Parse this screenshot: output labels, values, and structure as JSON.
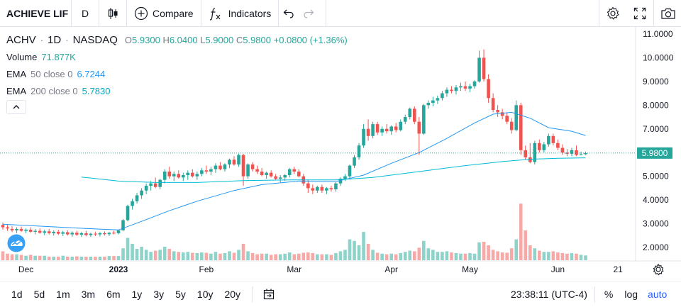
{
  "toolbar": {
    "symbol": "ACHIEVE LIF",
    "interval": "D",
    "compare_label": "Compare",
    "indicators_label": "Indicators"
  },
  "legend": {
    "symbol": "ACHV",
    "interval": "1D",
    "exchange": "NASDAQ",
    "open_key": "O",
    "open": "5.9300",
    "high_key": "H",
    "high": "6.0400",
    "low_key": "L",
    "low": "5.9000",
    "close_key": "C",
    "close": "5.9800",
    "change": "+0.0800 (+1.36%)",
    "volume_label": "Volume",
    "volume_value": "71.877K",
    "ema50_label": "EMA",
    "ema50_params": "50 close 0",
    "ema50_value": "6.7244",
    "ema200_label": "EMA",
    "ema200_params": "200 close 0",
    "ema200_value": "5.7830"
  },
  "price_axis": {
    "ticks": [
      "11.0000",
      "10.0000",
      "9.0000",
      "8.0000",
      "7.0000",
      "6.0000",
      "5.0000",
      "4.0000",
      "3.0000",
      "2.0000"
    ],
    "last_price_label": "5.9800"
  },
  "time_axis": {
    "ticks": [
      {
        "label": "Dec",
        "bold": false
      },
      {
        "label": "2023",
        "bold": true
      },
      {
        "label": "Feb",
        "bold": false
      },
      {
        "label": "Mar",
        "bold": false
      },
      {
        "label": "Apr",
        "bold": false
      },
      {
        "label": "May",
        "bold": false
      },
      {
        "label": "Jun",
        "bold": false
      },
      {
        "label": "21",
        "bold": false
      }
    ]
  },
  "bottom": {
    "ranges": [
      "1d",
      "5d",
      "1m",
      "3m",
      "6m",
      "1y",
      "3y",
      "5y",
      "10y",
      "20y"
    ],
    "clock": "23:38:11 (UTC-4)",
    "percent": "%",
    "log": "log",
    "auto": "auto"
  },
  "colors": {
    "up": "#26a69a",
    "down": "#ef5350",
    "ema50": "#2196f3",
    "ema200": "#00bcd4",
    "vol_up": "#8ed3c9",
    "vol_down": "#f7a9a7"
  },
  "chart_data": {
    "type": "candlestick",
    "axis_scale": "linear",
    "ylim": [
      1.6,
      11.2
    ],
    "last_price": 5.98,
    "candles_ohlc": [
      [
        2.95,
        3.05,
        2.75,
        2.85
      ],
      [
        2.85,
        2.95,
        2.7,
        2.8
      ],
      [
        2.78,
        2.9,
        2.65,
        2.72
      ],
      [
        2.72,
        2.85,
        2.6,
        2.78
      ],
      [
        2.78,
        2.88,
        2.65,
        2.7
      ],
      [
        2.7,
        2.8,
        2.6,
        2.75
      ],
      [
        2.75,
        2.85,
        2.62,
        2.66
      ],
      [
        2.66,
        2.78,
        2.55,
        2.7
      ],
      [
        2.7,
        2.8,
        2.58,
        2.62
      ],
      [
        2.62,
        2.75,
        2.52,
        2.68
      ],
      [
        2.68,
        2.78,
        2.55,
        2.6
      ],
      [
        2.6,
        2.72,
        2.5,
        2.66
      ],
      [
        2.66,
        2.75,
        2.52,
        2.58
      ],
      [
        2.58,
        2.7,
        2.48,
        2.64
      ],
      [
        2.64,
        2.72,
        2.5,
        2.55
      ],
      [
        2.55,
        2.68,
        2.45,
        2.62
      ],
      [
        2.62,
        2.7,
        2.48,
        2.54
      ],
      [
        2.54,
        2.66,
        2.45,
        2.6
      ],
      [
        2.6,
        2.7,
        2.47,
        2.52
      ],
      [
        2.52,
        2.62,
        2.45,
        2.58
      ],
      [
        2.58,
        2.66,
        2.48,
        2.55
      ],
      [
        2.55,
        2.65,
        2.46,
        2.6
      ],
      [
        2.6,
        2.68,
        2.5,
        2.56
      ],
      [
        2.56,
        2.65,
        2.48,
        2.62
      ],
      [
        2.62,
        2.7,
        2.55,
        2.6
      ],
      [
        2.6,
        2.75,
        2.55,
        2.72
      ],
      [
        2.72,
        3.2,
        2.7,
        3.15
      ],
      [
        3.15,
        3.8,
        3.1,
        3.75
      ],
      [
        3.75,
        4.05,
        3.6,
        3.95
      ],
      [
        3.95,
        4.3,
        3.85,
        4.2
      ],
      [
        4.2,
        4.5,
        4.05,
        4.4
      ],
      [
        4.4,
        4.7,
        4.25,
        4.6
      ],
      [
        4.6,
        4.8,
        4.4,
        4.7
      ],
      [
        4.7,
        4.95,
        4.5,
        4.55
      ],
      [
        4.55,
        4.9,
        4.45,
        4.85
      ],
      [
        4.85,
        5.3,
        4.7,
        5.2
      ],
      [
        5.2,
        5.4,
        4.9,
        5.0
      ],
      [
        5.0,
        5.2,
        4.8,
        5.1
      ],
      [
        5.1,
        5.25,
        4.9,
        4.95
      ],
      [
        4.95,
        5.15,
        4.8,
        5.05
      ],
      [
        5.05,
        5.25,
        4.85,
        5.15
      ],
      [
        5.15,
        5.3,
        4.95,
        5.0
      ],
      [
        5.0,
        5.2,
        4.85,
        5.1
      ],
      [
        5.1,
        5.35,
        5.0,
        5.25
      ],
      [
        5.25,
        5.45,
        5.1,
        5.2
      ],
      [
        5.2,
        5.4,
        5.05,
        5.3
      ],
      [
        5.3,
        5.55,
        5.15,
        5.45
      ],
      [
        5.45,
        5.6,
        5.25,
        5.3
      ],
      [
        5.3,
        5.55,
        5.2,
        5.5
      ],
      [
        5.5,
        5.75,
        5.35,
        5.7
      ],
      [
        5.7,
        5.85,
        5.45,
        5.5
      ],
      [
        5.5,
        5.95,
        5.4,
        5.9
      ],
      [
        5.9,
        5.95,
        4.6,
        5.0
      ],
      [
        5.0,
        5.55,
        4.9,
        5.5
      ],
      [
        5.5,
        5.6,
        5.2,
        5.3
      ],
      [
        5.3,
        5.45,
        5.1,
        5.2
      ],
      [
        5.2,
        5.35,
        5.0,
        5.05
      ],
      [
        5.05,
        5.2,
        4.9,
        5.15
      ],
      [
        5.15,
        5.25,
        4.95,
        5.0
      ],
      [
        5.0,
        5.1,
        4.85,
        4.9
      ],
      [
        4.9,
        5.05,
        4.75,
        4.95
      ],
      [
        4.95,
        5.1,
        4.8,
        5.05
      ],
      [
        5.05,
        5.35,
        4.95,
        5.3
      ],
      [
        5.3,
        5.4,
        5.1,
        5.2
      ],
      [
        5.2,
        5.3,
        4.95,
        5.0
      ],
      [
        5.0,
        5.1,
        4.6,
        4.7
      ],
      [
        4.7,
        4.85,
        4.3,
        4.5
      ],
      [
        4.5,
        4.65,
        4.25,
        4.4
      ],
      [
        4.4,
        4.6,
        4.3,
        4.55
      ],
      [
        4.55,
        4.65,
        4.3,
        4.4
      ],
      [
        4.4,
        4.55,
        4.25,
        4.5
      ],
      [
        4.5,
        4.6,
        4.35,
        4.45
      ],
      [
        4.45,
        4.75,
        4.35,
        4.7
      ],
      [
        4.7,
        4.95,
        4.6,
        4.9
      ],
      [
        4.9,
        5.1,
        4.8,
        5.0
      ],
      [
        5.0,
        5.5,
        4.9,
        5.45
      ],
      [
        5.45,
        5.9,
        5.35,
        5.8
      ],
      [
        5.8,
        6.4,
        5.7,
        6.3
      ],
      [
        6.3,
        7.2,
        6.2,
        7.0
      ],
      [
        7.0,
        7.4,
        6.5,
        6.7
      ],
      [
        6.7,
        7.3,
        6.6,
        7.2
      ],
      [
        7.2,
        7.3,
        6.75,
        6.85
      ],
      [
        6.85,
        7.1,
        6.7,
        7.0
      ],
      [
        7.0,
        7.2,
        6.8,
        6.9
      ],
      [
        6.9,
        7.15,
        6.75,
        7.1
      ],
      [
        7.1,
        7.25,
        6.85,
        6.95
      ],
      [
        6.95,
        7.4,
        6.9,
        7.3
      ],
      [
        7.3,
        7.6,
        7.2,
        7.5
      ],
      [
        7.5,
        7.9,
        7.4,
        7.85
      ],
      [
        7.85,
        7.95,
        7.2,
        7.3
      ],
      [
        7.3,
        7.5,
        5.9,
        6.8
      ],
      [
        6.8,
        8.05,
        6.75,
        8.0
      ],
      [
        8.0,
        8.2,
        7.85,
        8.1
      ],
      [
        8.1,
        8.35,
        7.95,
        8.2
      ],
      [
        8.2,
        8.4,
        8.05,
        8.3
      ],
      [
        8.3,
        8.6,
        8.2,
        8.5
      ],
      [
        8.5,
        8.75,
        8.35,
        8.65
      ],
      [
        8.65,
        8.8,
        8.5,
        8.6
      ],
      [
        8.6,
        8.85,
        8.45,
        8.75
      ],
      [
        8.75,
        8.95,
        8.6,
        8.8
      ],
      [
        8.8,
        9.0,
        8.6,
        8.7
      ],
      [
        8.7,
        8.9,
        8.55,
        8.8
      ],
      [
        8.8,
        9.05,
        8.7,
        9.0
      ],
      [
        9.0,
        10.3,
        8.95,
        10.0
      ],
      [
        10.0,
        10.35,
        9.0,
        9.1
      ],
      [
        9.1,
        9.3,
        8.1,
        8.3
      ],
      [
        8.3,
        8.5,
        7.7,
        7.8
      ],
      [
        7.8,
        8.0,
        7.5,
        7.7
      ],
      [
        7.7,
        7.85,
        7.4,
        7.55
      ],
      [
        7.55,
        7.7,
        7.2,
        7.3
      ],
      [
        7.3,
        7.45,
        6.8,
        6.95
      ],
      [
        6.95,
        8.2,
        6.9,
        8.0
      ],
      [
        8.0,
        8.1,
        5.9,
        6.1
      ],
      [
        6.1,
        6.3,
        5.7,
        5.8
      ],
      [
        5.8,
        6.4,
        5.55,
        5.6
      ],
      [
        5.6,
        6.5,
        5.5,
        6.4
      ],
      [
        6.4,
        6.55,
        6.0,
        6.1
      ],
      [
        6.1,
        6.45,
        6.0,
        6.35
      ],
      [
        6.35,
        6.8,
        6.25,
        6.7
      ],
      [
        6.7,
        6.8,
        6.3,
        6.4
      ],
      [
        6.4,
        6.55,
        6.1,
        6.2
      ],
      [
        6.2,
        6.35,
        5.9,
        6.0
      ],
      [
        6.0,
        6.15,
        5.85,
        5.95
      ],
      [
        5.95,
        6.2,
        5.85,
        6.1
      ],
      [
        6.1,
        6.3,
        5.85,
        5.9
      ],
      [
        5.9,
        6.04,
        5.88,
        5.93
      ],
      [
        5.93,
        6.04,
        5.9,
        5.98
      ]
    ],
    "series": [
      {
        "name": "EMA 50 close 0",
        "color": "#2196f3",
        "points": [
          [
            0,
            2.98
          ],
          [
            10,
            2.88
          ],
          [
            20,
            2.78
          ],
          [
            25,
            2.74
          ],
          [
            30,
            3.1
          ],
          [
            36,
            3.55
          ],
          [
            42,
            3.95
          ],
          [
            50,
            4.4
          ],
          [
            56,
            4.65
          ],
          [
            64,
            4.8
          ],
          [
            72,
            4.78
          ],
          [
            78,
            5.05
          ],
          [
            84,
            5.55
          ],
          [
            90,
            6.0
          ],
          [
            96,
            6.6
          ],
          [
            102,
            7.25
          ],
          [
            106,
            7.62
          ],
          [
            110,
            7.7
          ],
          [
            114,
            7.45
          ],
          [
            118,
            7.05
          ],
          [
            123,
            6.9
          ],
          [
            126,
            6.72
          ]
        ]
      },
      {
        "name": "EMA 200 close 0",
        "color": "#00bcd4",
        "points": [
          [
            17,
            4.97
          ],
          [
            25,
            4.8
          ],
          [
            33,
            4.74
          ],
          [
            42,
            4.74
          ],
          [
            52,
            4.82
          ],
          [
            62,
            4.85
          ],
          [
            72,
            4.85
          ],
          [
            80,
            4.95
          ],
          [
            90,
            5.2
          ],
          [
            100,
            5.45
          ],
          [
            108,
            5.62
          ],
          [
            114,
            5.72
          ],
          [
            120,
            5.76
          ],
          [
            126,
            5.78
          ]
        ]
      }
    ],
    "volume": [
      0.3,
      0.22,
      0.2,
      0.2,
      0.18,
      0.15,
      0.18,
      0.15,
      0.15,
      0.15,
      0.12,
      0.12,
      0.12,
      0.15,
      0.12,
      0.12,
      0.13,
      0.12,
      0.12,
      0.12,
      0.12,
      0.12,
      0.12,
      0.14,
      0.14,
      0.14,
      0.4,
      0.75,
      0.55,
      0.38,
      0.45,
      0.35,
      0.28,
      0.32,
      0.35,
      0.45,
      0.38,
      0.3,
      0.28,
      0.26,
      0.28,
      0.25,
      0.24,
      0.26,
      0.25,
      0.22,
      0.28,
      0.22,
      0.24,
      0.3,
      0.25,
      0.35,
      0.55,
      0.3,
      0.24,
      0.2,
      0.22,
      0.22,
      0.18,
      0.2,
      0.2,
      0.22,
      0.26,
      0.2,
      0.22,
      0.25,
      0.26,
      0.24,
      0.2,
      0.2,
      0.2,
      0.18,
      0.24,
      0.3,
      0.35,
      0.7,
      0.65,
      0.5,
      0.95,
      0.55,
      0.35,
      0.25,
      0.22,
      0.2,
      0.22,
      0.2,
      0.24,
      0.28,
      0.32,
      0.3,
      0.42,
      0.65,
      0.4,
      0.35,
      0.28,
      0.28,
      0.3,
      0.26,
      0.24,
      0.22,
      0.22,
      0.24,
      0.22,
      0.6,
      0.62,
      0.5,
      0.35,
      0.3,
      0.26,
      0.25,
      0.4,
      0.7,
      1.9,
      1.0,
      0.5,
      0.4,
      0.32,
      0.28,
      0.28,
      0.3,
      0.26,
      0.24,
      0.22,
      0.24,
      0.22,
      0.18,
      0.16
    ]
  }
}
